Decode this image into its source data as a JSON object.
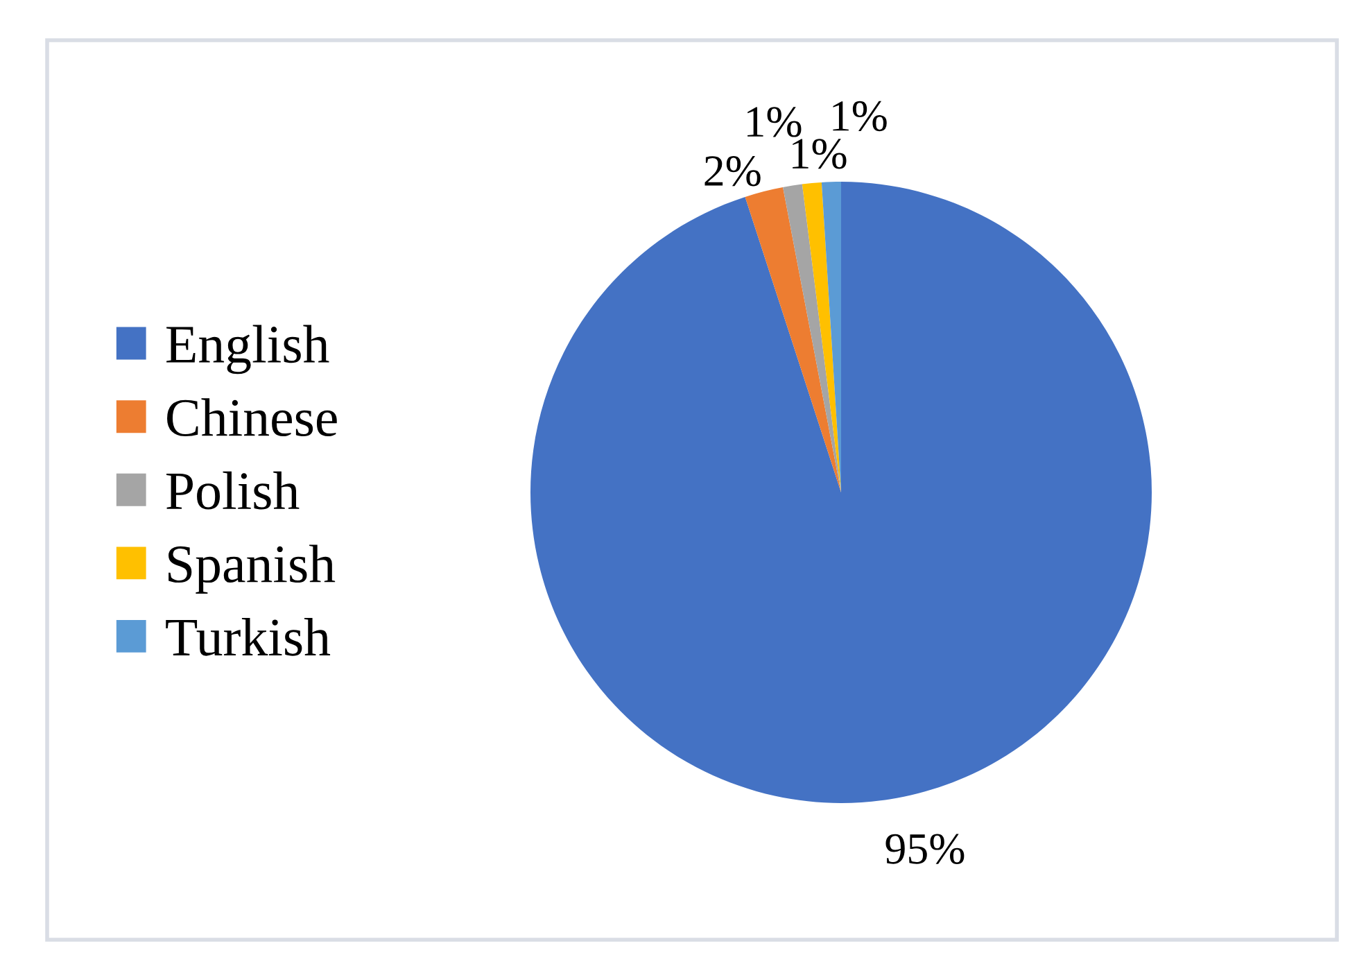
{
  "chart_data": {
    "type": "pie",
    "categories": [
      "English",
      "Chinese",
      "Polish",
      "Spanish",
      "Turkish"
    ],
    "values": [
      95,
      2,
      1,
      1,
      1
    ],
    "value_labels": [
      "95%",
      "2%",
      "1%",
      "1%",
      "1%"
    ],
    "colors": [
      "#4472c4",
      "#ed7d31",
      "#a5a5a5",
      "#ffc000",
      "#5b9bd5"
    ],
    "legend": "left"
  }
}
